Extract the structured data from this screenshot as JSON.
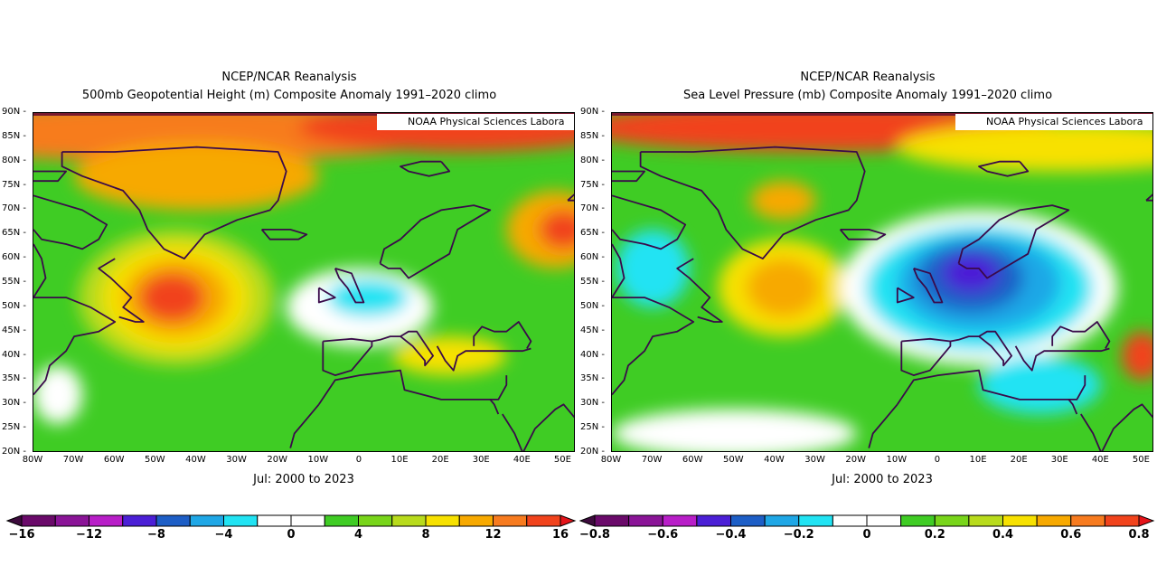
{
  "colors": [
    "#6a0a6a",
    "#8a1497",
    "#b81ec8",
    "#4b1fd6",
    "#1d5ec6",
    "#1fa7e6",
    "#21e3f3",
    "#ffffff",
    "#ffffff",
    "#3fcc24",
    "#78d51a",
    "#b8db1c",
    "#f7e100",
    "#f7a900",
    "#f77b1f",
    "#f1431c"
  ],
  "panels": [
    {
      "id": "left",
      "title_line1": "NCEP/NCAR Reanalysis",
      "title_line2": "500mb Geopotential Height (m) Composite Anomaly 1991–2020 climo",
      "credit": "NOAA Physical Sciences Labora",
      "period": "Jul: 2000 to 2023",
      "y_ticks": [
        "90N",
        "85N",
        "80N",
        "75N",
        "70N",
        "65N",
        "60N",
        "55N",
        "50N",
        "45N",
        "40N",
        "35N",
        "30N",
        "25N",
        "20N"
      ],
      "x_ticks": [
        "80W",
        "70W",
        "60W",
        "50W",
        "40W",
        "30W",
        "20W",
        "10W",
        "0",
        "10E",
        "20E",
        "30E",
        "40E",
        "50E"
      ],
      "colorbar_labels": [
        "−16",
        "−12",
        "−8",
        "−4",
        "0",
        "4",
        "8",
        "12",
        "16"
      ]
    },
    {
      "id": "right",
      "title_line1": "NCEP/NCAR Reanalysis",
      "title_line2": "Sea Level Pressure (mb) Composite Anomaly 1991–2020 climo",
      "credit": "NOAA Physical Sciences Labora",
      "period": "Jul: 2000 to 2023",
      "y_ticks": [
        "90N",
        "85N",
        "80N",
        "75N",
        "70N",
        "65N",
        "60N",
        "55N",
        "50N",
        "45N",
        "40N",
        "35N",
        "30N",
        "25N",
        "20N"
      ],
      "x_ticks": [
        "80W",
        "70W",
        "60W",
        "50W",
        "40W",
        "30W",
        "20W",
        "10W",
        "0",
        "10E",
        "20E",
        "30E",
        "40E",
        "50E"
      ],
      "colorbar_labels": [
        "−0.8",
        "−0.6",
        "−0.4",
        "−0.2",
        "0",
        "0.2",
        "0.4",
        "0.6",
        "0.8"
      ]
    }
  ],
  "fields": {
    "left": {
      "background": "#3fcc24",
      "blobs": [
        {
          "lon": -45,
          "lat": 86,
          "rx_deg": 70,
          "ry_deg": 6,
          "color": "#f77b1f"
        },
        {
          "lon": 25,
          "lat": 87,
          "rx_deg": 40,
          "ry_deg": 5,
          "color": "#f1431c"
        },
        {
          "lon": -40,
          "lat": 77,
          "rx_deg": 30,
          "ry_deg": 7,
          "color": "#f7a900"
        },
        {
          "lon": -45,
          "lat": 52,
          "rx_deg": 24,
          "ry_deg": 14,
          "color": "#b8db1c"
        },
        {
          "lon": -45,
          "lat": 52,
          "rx_deg": 18,
          "ry_deg": 11,
          "color": "#f7e100"
        },
        {
          "lon": -45,
          "lat": 52,
          "rx_deg": 13,
          "ry_deg": 8,
          "color": "#f7a900"
        },
        {
          "lon": -46,
          "lat": 52,
          "rx_deg": 8,
          "ry_deg": 5,
          "color": "#f1431c"
        },
        {
          "lon": 48,
          "lat": 66,
          "rx_deg": 12,
          "ry_deg": 8,
          "color": "#f7a900"
        },
        {
          "lon": 50,
          "lat": 66,
          "rx_deg": 6,
          "ry_deg": 4,
          "color": "#f1431c"
        },
        {
          "lon": 0,
          "lat": 50,
          "rx_deg": 18,
          "ry_deg": 8,
          "color": "#ffffff"
        },
        {
          "lon": 2,
          "lat": 52,
          "rx_deg": 10,
          "ry_deg": 4,
          "color": "#21e3f3"
        },
        {
          "lon": 22,
          "lat": 40,
          "rx_deg": 14,
          "ry_deg": 4,
          "color": "#f7e100"
        },
        {
          "lon": -74,
          "lat": 32,
          "rx_deg": 6,
          "ry_deg": 6,
          "color": "#ffffff"
        }
      ]
    },
    "right": {
      "background": "#3fcc24",
      "blobs": [
        {
          "lon": -30,
          "lat": 87,
          "rx_deg": 60,
          "ry_deg": 5,
          "color": "#f1431c"
        },
        {
          "lon": 30,
          "lat": 83,
          "rx_deg": 40,
          "ry_deg": 5,
          "color": "#f7e100"
        },
        {
          "lon": -70,
          "lat": 58,
          "rx_deg": 9,
          "ry_deg": 8,
          "color": "#21e3f3"
        },
        {
          "lon": -38,
          "lat": 72,
          "rx_deg": 8,
          "ry_deg": 4,
          "color": "#f7a900"
        },
        {
          "lon": -38,
          "lat": 54,
          "rx_deg": 16,
          "ry_deg": 10,
          "color": "#f7e100"
        },
        {
          "lon": -38,
          "lat": 54,
          "rx_deg": 9,
          "ry_deg": 6,
          "color": "#f7a900"
        },
        {
          "lon": 10,
          "lat": 54,
          "rx_deg": 34,
          "ry_deg": 16,
          "color": "#ffffff"
        },
        {
          "lon": 10,
          "lat": 54,
          "rx_deg": 28,
          "ry_deg": 13,
          "color": "#21e3f3"
        },
        {
          "lon": 10,
          "lat": 55,
          "rx_deg": 20,
          "ry_deg": 10,
          "color": "#1fa7e6"
        },
        {
          "lon": 8,
          "lat": 56,
          "rx_deg": 13,
          "ry_deg": 7,
          "color": "#1d5ec6"
        },
        {
          "lon": 8,
          "lat": 57,
          "rx_deg": 7,
          "ry_deg": 4,
          "color": "#4b1fd6"
        },
        {
          "lon": 25,
          "lat": 34,
          "rx_deg": 15,
          "ry_deg": 6,
          "color": "#21e3f3"
        },
        {
          "lon": -50,
          "lat": 24,
          "rx_deg": 30,
          "ry_deg": 5,
          "color": "#ffffff"
        },
        {
          "lon": 50,
          "lat": 40,
          "rx_deg": 5,
          "ry_deg": 5,
          "color": "#f1431c"
        }
      ]
    }
  },
  "coastlines": [
    [
      [
        -73,
        82
      ],
      [
        -60,
        82
      ],
      [
        -40,
        83
      ],
      [
        -20,
        82
      ],
      [
        -18,
        78
      ],
      [
        -20,
        72
      ],
      [
        -22,
        70
      ],
      [
        -30,
        68
      ],
      [
        -38,
        65
      ],
      [
        -43,
        60
      ],
      [
        -48,
        62
      ],
      [
        -52,
        66
      ],
      [
        -54,
        70
      ],
      [
        -58,
        74
      ],
      [
        -68,
        77
      ],
      [
        -73,
        79
      ],
      [
        -73,
        82
      ]
    ],
    [
      [
        -80,
        63
      ],
      [
        -78,
        60
      ],
      [
        -77,
        56
      ],
      [
        -80,
        52
      ],
      [
        -72,
        52
      ],
      [
        -66,
        50
      ],
      [
        -60,
        47
      ],
      [
        -64,
        45
      ],
      [
        -70,
        44
      ],
      [
        -72,
        41
      ],
      [
        -76,
        38
      ],
      [
        -77,
        35
      ],
      [
        -80,
        32
      ]
    ],
    [
      [
        -60,
        60
      ],
      [
        -64,
        58
      ],
      [
        -61,
        56
      ],
      [
        -56,
        52
      ],
      [
        -58,
        50
      ],
      [
        -53,
        47
      ],
      [
        -55,
        47
      ],
      [
        -59,
        48
      ]
    ],
    [
      [
        -24,
        66
      ],
      [
        -22,
        64
      ],
      [
        -15,
        64
      ],
      [
        -13,
        65
      ],
      [
        -17,
        66
      ],
      [
        -24,
        66
      ]
    ],
    [
      [
        -6,
        58
      ],
      [
        -5,
        56
      ],
      [
        -3,
        54
      ],
      [
        -1,
        51
      ],
      [
        1,
        51
      ],
      [
        0,
        53
      ],
      [
        -2,
        57
      ],
      [
        -6,
        58
      ]
    ],
    [
      [
        -10,
        54
      ],
      [
        -6,
        52
      ],
      [
        -10,
        51
      ],
      [
        -10,
        54
      ]
    ],
    [
      [
        5,
        59
      ],
      [
        6,
        62
      ],
      [
        10,
        64
      ],
      [
        15,
        68
      ],
      [
        20,
        70
      ],
      [
        28,
        71
      ],
      [
        32,
        70
      ],
      [
        30,
        69
      ],
      [
        24,
        66
      ],
      [
        22,
        61
      ],
      [
        18,
        59
      ],
      [
        12,
        56
      ],
      [
        10,
        58
      ],
      [
        7,
        58
      ],
      [
        5,
        59
      ]
    ],
    [
      [
        -9,
        43
      ],
      [
        -9,
        37
      ],
      [
        -6,
        36
      ],
      [
        -2,
        37
      ],
      [
        0,
        39
      ],
      [
        3,
        42
      ],
      [
        3,
        43
      ],
      [
        -2,
        43.5
      ],
      [
        -9,
        43
      ]
    ],
    [
      [
        3,
        43
      ],
      [
        5,
        43.3
      ],
      [
        7.5,
        44
      ],
      [
        10,
        44
      ],
      [
        13,
        42
      ],
      [
        16,
        39
      ],
      [
        16,
        38
      ],
      [
        18,
        40
      ],
      [
        14,
        45
      ],
      [
        12,
        45
      ],
      [
        10,
        44
      ]
    ],
    [
      [
        -10,
        30
      ],
      [
        -6,
        35
      ],
      [
        0,
        36
      ],
      [
        10,
        37
      ],
      [
        11,
        33
      ],
      [
        20,
        31
      ],
      [
        30,
        31
      ],
      [
        34,
        31
      ],
      [
        36,
        34
      ],
      [
        36,
        36
      ]
    ],
    [
      [
        19,
        42
      ],
      [
        21,
        39
      ],
      [
        23,
        37
      ],
      [
        24,
        40
      ],
      [
        26,
        41
      ],
      [
        29,
        41
      ],
      [
        36,
        41
      ],
      [
        40,
        41
      ],
      [
        42,
        41.5
      ]
    ],
    [
      [
        28,
        42
      ],
      [
        28,
        44
      ],
      [
        30,
        46
      ],
      [
        33,
        45
      ],
      [
        36,
        45
      ],
      [
        39,
        47
      ],
      [
        42,
        43
      ],
      [
        41,
        41.5
      ]
    ],
    [
      [
        34,
        28
      ],
      [
        33,
        30
      ],
      [
        32,
        31
      ]
    ],
    [
      [
        35,
        28
      ],
      [
        38,
        24
      ],
      [
        40,
        20
      ]
    ],
    [
      [
        40,
        20
      ],
      [
        43,
        25
      ],
      [
        48,
        29
      ],
      [
        50,
        30
      ],
      [
        56,
        24
      ]
    ],
    [
      [
        -17,
        21
      ],
      [
        -16,
        24
      ],
      [
        -13,
        27
      ],
      [
        -10,
        30
      ]
    ],
    [
      [
        20,
        80
      ],
      [
        22,
        78
      ],
      [
        17,
        77
      ],
      [
        12,
        78
      ],
      [
        10,
        79
      ],
      [
        15,
        80
      ],
      [
        20,
        80
      ]
    ],
    [
      [
        51,
        72
      ],
      [
        55,
        75
      ],
      [
        60,
        76
      ],
      [
        56,
        74
      ],
      [
        53,
        72
      ],
      [
        51,
        72
      ]
    ],
    [
      [
        -80,
        73
      ],
      [
        -76,
        72
      ],
      [
        -68,
        70
      ],
      [
        -62,
        67
      ],
      [
        -64,
        64
      ],
      [
        -68,
        62
      ],
      [
        -72,
        63
      ],
      [
        -78,
        64
      ],
      [
        -80,
        66
      ]
    ],
    [
      [
        -80,
        76
      ],
      [
        -74,
        76
      ],
      [
        -72,
        78
      ],
      [
        -80,
        78
      ]
    ]
  ]
}
